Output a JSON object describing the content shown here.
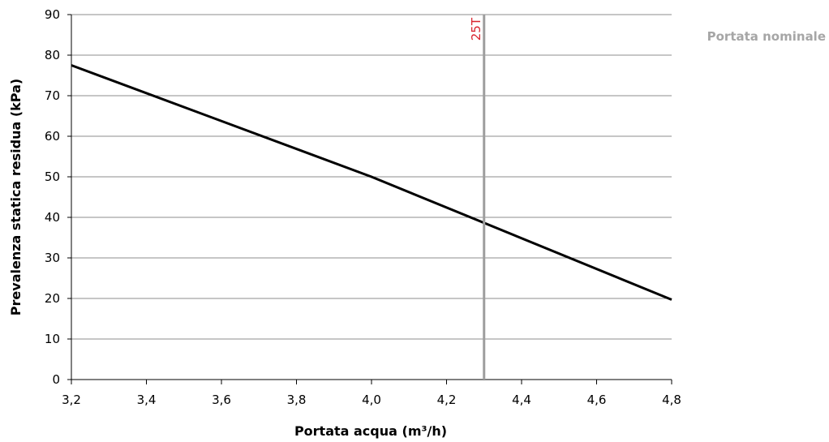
{
  "chart_data": {
    "type": "line",
    "xlabel": "Portata acqua (m³/h)",
    "ylabel": "Prevalenza statica residua (kPa)",
    "xlim": [
      3.2,
      4.8
    ],
    "ylim": [
      0,
      90
    ],
    "x_ticks": [
      3.2,
      3.4,
      3.6,
      3.8,
      4.0,
      4.2,
      4.4,
      4.6,
      4.8
    ],
    "x_tick_labels": [
      "3,2",
      "3,4",
      "3,6",
      "3,8",
      "4,0",
      "4,2",
      "4,4",
      "4,6",
      "4,8"
    ],
    "y_ticks": [
      0,
      10,
      20,
      30,
      40,
      50,
      60,
      70,
      80,
      90
    ],
    "y_tick_labels": [
      "0",
      "10",
      "20",
      "30",
      "40",
      "50",
      "60",
      "70",
      "80",
      "90"
    ],
    "grid": "horizontal",
    "series": [
      {
        "x": [
          3.2,
          4.0,
          4.8
        ],
        "y": [
          77.5,
          50,
          19.7
        ],
        "color": "#000000"
      }
    ],
    "vertical_marker": {
      "x": 4.3,
      "label": "25T",
      "line_color": "#9e9e9e",
      "label_color": "#d9232e"
    },
    "legend": {
      "label": "Portata nominale",
      "placement": "top-right",
      "color": "#a6a6a6"
    }
  }
}
